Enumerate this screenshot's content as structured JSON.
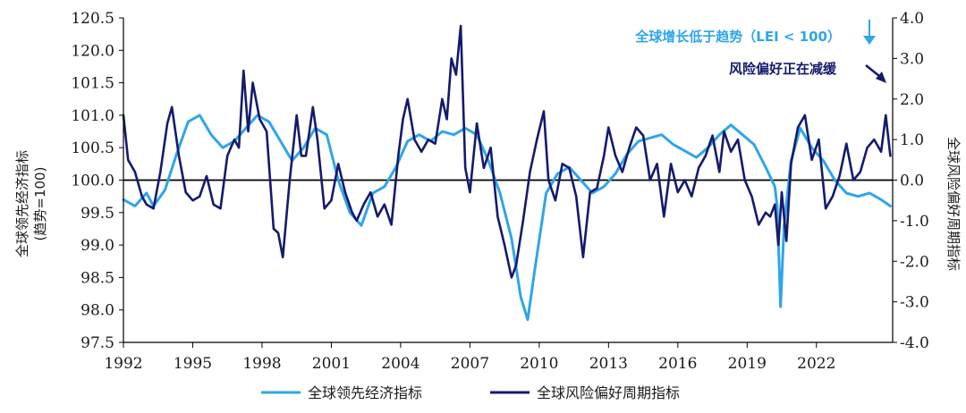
{
  "chart_data": {
    "type": "line",
    "ylabel_left": "全球领先经济指标",
    "ylabel_left_sub": "(趋势=100)",
    "ylabel_right": "全球风险偏好周期指标",
    "x_ticks": [
      "1992",
      "1995",
      "1998",
      "2001",
      "2004",
      "2007",
      "2010",
      "2013",
      "2016",
      "2019",
      "2022"
    ],
    "xlim": [
      1992,
      2025.3
    ],
    "ylim_left": [
      97.5,
      120.5
    ],
    "left_ticks": [
      "97.5",
      "98.0",
      "98.5",
      "99.0",
      "99.5",
      "100.0",
      "100.5",
      "101.0",
      "101.5",
      "120.0",
      "120.5"
    ],
    "ylim_right": [
      -4.0,
      4.0
    ],
    "right_ticks": [
      "-4.0",
      "-3.0",
      "-2.0",
      "-1.0",
      "0.0",
      "1.0",
      "2.0",
      "3.0",
      "4.0"
    ],
    "reference_line": {
      "axis": "left",
      "value": 100.0
    },
    "annotations": [
      {
        "text": "全球增长低于趋势（LEI < 100）",
        "color": "#2ea6e8",
        "arrow": "down"
      },
      {
        "text": "风险偏好正在减缓",
        "color": "#141a6e",
        "arrow": "down-right"
      }
    ],
    "legend_position": "bottom",
    "series": [
      {
        "name": "全球领先经济指标",
        "axis": "left",
        "color": "#2ea6e8",
        "x": [
          1992.0,
          1992.5,
          1993.0,
          1993.3,
          1993.8,
          1994.3,
          1994.8,
          1995.3,
          1995.8,
          1996.3,
          1996.8,
          1997.3,
          1997.8,
          1998.3,
          1998.8,
          1999.3,
          1999.8,
          2000.3,
          2000.8,
          2001.3,
          2001.8,
          2002.3,
          2002.8,
          2003.3,
          2003.8,
          2004.3,
          2004.8,
          2005.3,
          2005.8,
          2006.3,
          2006.8,
          2007.3,
          2007.8,
          2008.3,
          2008.8,
          2009.2,
          2009.5,
          2009.8,
          2010.3,
          2010.8,
          2011.3,
          2011.8,
          2012.3,
          2012.8,
          2013.3,
          2013.8,
          2014.3,
          2014.8,
          2015.3,
          2015.8,
          2016.3,
          2016.8,
          2017.3,
          2017.8,
          2018.3,
          2018.8,
          2019.3,
          2019.8,
          2020.2,
          2020.3,
          2020.45,
          2020.6,
          2020.9,
          2021.3,
          2021.8,
          2022.3,
          2022.8,
          2023.3,
          2023.8,
          2024.3,
          2024.8,
          2025.2
        ],
        "y": [
          99.7,
          99.6,
          99.8,
          99.6,
          99.85,
          100.4,
          100.9,
          101.0,
          100.7,
          100.5,
          100.6,
          100.8,
          101.0,
          100.9,
          100.6,
          100.3,
          100.5,
          100.8,
          100.7,
          100.0,
          99.5,
          99.3,
          99.8,
          99.9,
          100.2,
          100.6,
          100.7,
          100.6,
          100.75,
          100.7,
          100.8,
          100.7,
          100.3,
          99.8,
          99.1,
          98.2,
          97.85,
          98.6,
          99.8,
          100.1,
          100.2,
          100.0,
          99.8,
          99.9,
          100.1,
          100.4,
          100.6,
          100.65,
          100.7,
          100.55,
          100.45,
          100.35,
          100.5,
          100.7,
          100.85,
          100.7,
          100.55,
          100.2,
          99.9,
          99.6,
          98.05,
          99.3,
          100.3,
          100.8,
          100.5,
          100.3,
          100.0,
          99.8,
          99.75,
          99.8,
          99.7,
          99.6
        ]
      },
      {
        "name": "全球风险偏好周期指标",
        "axis": "right",
        "color": "#141a6e",
        "x": [
          1992.0,
          1992.2,
          1992.5,
          1992.8,
          1993.0,
          1993.3,
          1993.6,
          1993.9,
          1994.1,
          1994.4,
          1994.7,
          1995.0,
          1995.3,
          1995.6,
          1995.9,
          1996.2,
          1996.5,
          1996.8,
          1997.0,
          1997.2,
          1997.4,
          1997.6,
          1997.9,
          1998.2,
          1998.5,
          1998.7,
          1998.9,
          1999.2,
          1999.5,
          1999.7,
          1999.9,
          2000.2,
          2000.4,
          2000.7,
          2001.0,
          2001.3,
          2001.6,
          2001.9,
          2002.1,
          2002.4,
          2002.7,
          2003.0,
          2003.3,
          2003.6,
          2003.9,
          2004.1,
          2004.3,
          2004.6,
          2004.9,
          2005.2,
          2005.5,
          2005.8,
          2006.0,
          2006.2,
          2006.4,
          2006.6,
          2006.8,
          2007.0,
          2007.3,
          2007.6,
          2007.9,
          2008.2,
          2008.5,
          2008.8,
          2009.0,
          2009.3,
          2009.6,
          2009.9,
          2010.2,
          2010.4,
          2010.7,
          2011.0,
          2011.3,
          2011.6,
          2011.9,
          2012.2,
          2012.5,
          2012.8,
          2013.0,
          2013.3,
          2013.6,
          2013.9,
          2014.2,
          2014.5,
          2014.8,
          2015.1,
          2015.4,
          2015.7,
          2016.0,
          2016.3,
          2016.6,
          2016.9,
          2017.2,
          2017.5,
          2017.8,
          2018.0,
          2018.3,
          2018.6,
          2018.9,
          2019.2,
          2019.5,
          2019.8,
          2020.0,
          2020.2,
          2020.35,
          2020.5,
          2020.7,
          2020.9,
          2021.2,
          2021.5,
          2021.8,
          2022.1,
          2022.4,
          2022.7,
          2023.0,
          2023.3,
          2023.6,
          2023.9,
          2024.2,
          2024.5,
          2024.8,
          2025.0,
          2025.2
        ],
        "y": [
          1.6,
          0.5,
          0.2,
          -0.4,
          -0.6,
          -0.7,
          0.2,
          1.4,
          1.8,
          0.6,
          -0.3,
          -0.5,
          -0.4,
          0.1,
          -0.6,
          -0.7,
          0.6,
          1.0,
          0.8,
          2.7,
          1.2,
          2.4,
          1.5,
          1.2,
          -1.2,
          -1.3,
          -1.9,
          0.0,
          1.6,
          0.6,
          0.6,
          1.8,
          1.0,
          -0.7,
          -0.5,
          0.4,
          -0.3,
          -0.8,
          -1.0,
          -0.6,
          -0.3,
          -0.9,
          -0.6,
          -1.1,
          0.6,
          1.5,
          2.0,
          1.0,
          0.7,
          1.0,
          0.9,
          2.0,
          1.5,
          3.0,
          2.6,
          3.8,
          0.3,
          -0.3,
          1.4,
          0.3,
          0.8,
          -0.9,
          -1.6,
          -2.4,
          -2.1,
          -1.0,
          0.2,
          1.0,
          1.7,
          0.0,
          -0.5,
          0.4,
          0.3,
          -0.4,
          -1.9,
          -0.3,
          -0.2,
          0.6,
          1.3,
          0.6,
          0.2,
          0.8,
          1.3,
          1.1,
          0.0,
          0.4,
          -0.9,
          0.4,
          -0.3,
          0.0,
          -0.4,
          0.3,
          0.6,
          1.1,
          0.2,
          1.2,
          0.7,
          1.0,
          0.0,
          -0.4,
          -1.1,
          -0.8,
          -0.9,
          -0.6,
          -1.6,
          -0.3,
          -1.5,
          0.4,
          1.3,
          1.6,
          0.5,
          1.0,
          -0.7,
          -0.4,
          0.1,
          0.9,
          0.0,
          0.2,
          0.8,
          1.0,
          0.7,
          1.6,
          0.6
        ]
      }
    ]
  }
}
